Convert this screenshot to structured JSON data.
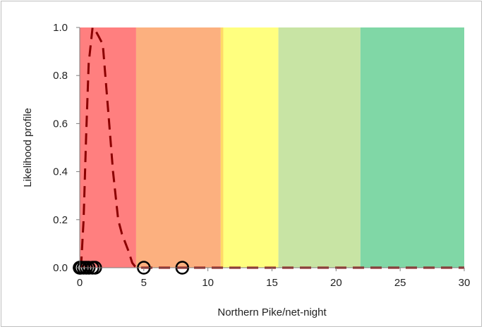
{
  "chart_data": {
    "type": "line",
    "xlabel": "Northern Pike/net-night",
    "ylabel": "Likelihood profile",
    "xlim": [
      0,
      30
    ],
    "ylim": [
      0,
      1
    ],
    "xticks": [
      0,
      5,
      10,
      15,
      20,
      25,
      30
    ],
    "yticks": [
      0.0,
      0.2,
      0.4,
      0.6,
      0.8,
      1.0
    ],
    "ytick_labels": [
      "0.0",
      "0.2",
      "0.4",
      "0.6",
      "0.8",
      "1.0"
    ],
    "grid": false,
    "legend": "none",
    "bands": [
      {
        "from": 0,
        "to": 4.4,
        "color": "#ff7f7f"
      },
      {
        "from": 4.4,
        "to": 11.0,
        "color": "#fcb07f"
      },
      {
        "from": 11.0,
        "to": 11.2,
        "color": "#ffd966"
      },
      {
        "from": 11.2,
        "to": 15.5,
        "color": "#ffff7f"
      },
      {
        "from": 15.5,
        "to": 21.9,
        "color": "#c8e4a4"
      },
      {
        "from": 21.9,
        "to": 30,
        "color": "#80d7a6"
      }
    ],
    "series": [
      {
        "style": "dashed-line",
        "color": "#8b0000",
        "x": [
          0.1,
          0.3,
          0.5,
          0.7,
          1.0,
          1.2,
          1.5,
          1.8,
          2.0,
          2.3,
          2.6,
          3.0,
          3.3,
          3.8,
          4.1,
          4.4,
          5,
          8,
          12,
          16,
          20,
          25,
          30
        ],
        "y": [
          0.0,
          0.2,
          0.55,
          0.85,
          1.0,
          0.99,
          0.96,
          0.93,
          0.8,
          0.6,
          0.4,
          0.2,
          0.14,
          0.07,
          0.02,
          0.0,
          0,
          0,
          0,
          0,
          0,
          0,
          0
        ]
      },
      {
        "style": "markers",
        "marker": "open-circle",
        "color": "#000000",
        "x": [
          0,
          0,
          0.1,
          0.3,
          0.5,
          0.7,
          1.0,
          1.2,
          5.0,
          8.0
        ],
        "y": [
          0,
          0,
          0,
          0,
          0,
          0,
          0,
          0,
          0,
          0
        ]
      }
    ]
  }
}
